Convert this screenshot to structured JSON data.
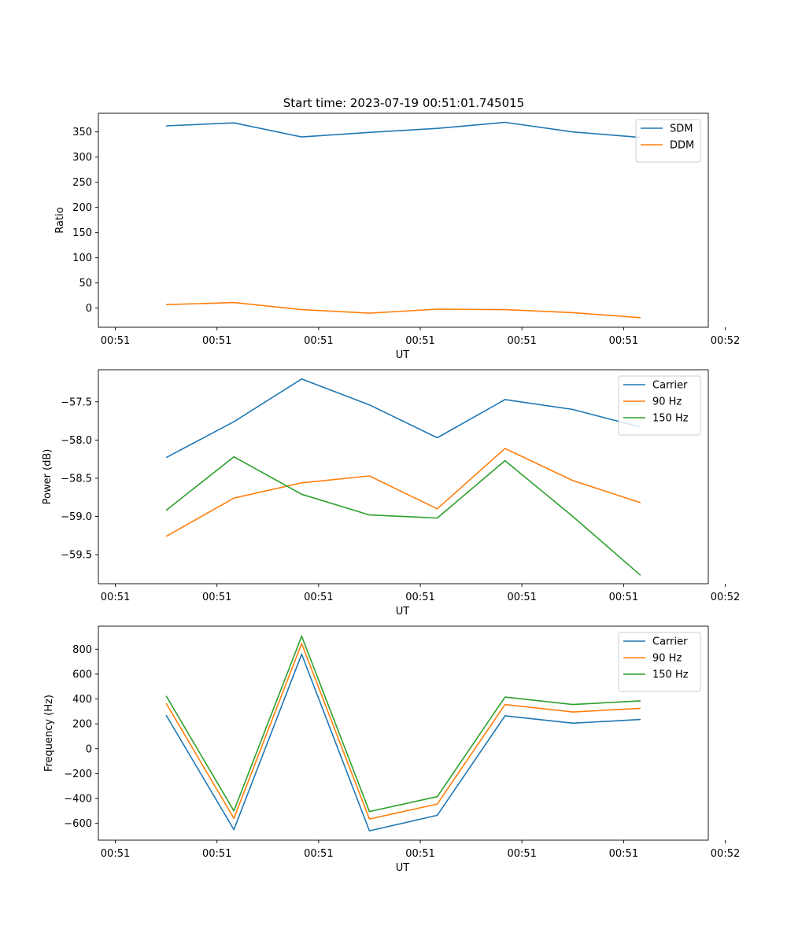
{
  "figure_title": "Start time: 2023-07-19 00:51:01.745015",
  "colors": {
    "blue": "#1f77b4",
    "orange": "#ff7f0e",
    "green": "#2ca02c"
  },
  "chart_data": [
    {
      "type": "line",
      "xlabel": "UT",
      "ylabel": "Ratio",
      "xlim": [
        -0.5,
        8.5
      ],
      "ylim": [
        -38,
        387
      ],
      "xticks": [
        -0.25,
        1.25,
        2.75,
        4.25,
        5.75,
        7.25,
        8.75
      ],
      "xtick_labels": [
        "00:51",
        "00:51",
        "00:51",
        "00:51",
        "00:51",
        "00:51",
        "00:52"
      ],
      "yticks": [
        0,
        50,
        100,
        150,
        200,
        250,
        300,
        350
      ],
      "ytick_labels": [
        "0",
        "50",
        "100",
        "150",
        "200",
        "250",
        "300",
        "350"
      ],
      "x": [
        0.5,
        1.5,
        2.5,
        3.5,
        4.5,
        5.5,
        6.5,
        7.5
      ],
      "legend_position": "top-right",
      "series": [
        {
          "name": "SDM",
          "color": "#1f77b4",
          "values": [
            362,
            368,
            340,
            349,
            357,
            369,
            350,
            339
          ]
        },
        {
          "name": "DDM",
          "color": "#ff7f0e",
          "values": [
            7,
            11,
            -3,
            -10,
            -2,
            -3,
            -9,
            -19
          ]
        }
      ]
    },
    {
      "type": "line",
      "xlabel": "UT",
      "ylabel": "Power (dB)",
      "xlim": [
        -0.5,
        8.5
      ],
      "ylim": [
        -59.88,
        -57.08
      ],
      "xticks": [
        -0.25,
        1.25,
        2.75,
        4.25,
        5.75,
        7.25,
        8.75
      ],
      "xtick_labels": [
        "00:51",
        "00:51",
        "00:51",
        "00:51",
        "00:51",
        "00:51",
        "00:52"
      ],
      "yticks": [
        -59.5,
        -59.0,
        -58.5,
        -58.0,
        -57.5
      ],
      "ytick_labels": [
        "−59.5",
        "−59.0",
        "−58.5",
        "−58.0",
        "−57.5"
      ],
      "x": [
        0.5,
        1.5,
        2.5,
        3.5,
        4.5,
        5.5,
        6.5,
        7.5
      ],
      "legend_position": "top-right",
      "series": [
        {
          "name": "Carrier",
          "color": "#1f77b4",
          "values": [
            -58.23,
            -57.76,
            -57.2,
            -57.54,
            -57.97,
            -57.47,
            -57.6,
            -57.83
          ]
        },
        {
          "name": "90 Hz",
          "color": "#ff7f0e",
          "values": [
            -59.26,
            -58.76,
            -58.56,
            -58.47,
            -58.9,
            -58.11,
            -58.53,
            -58.82
          ]
        },
        {
          "name": "150 Hz",
          "color": "#2ca02c",
          "values": [
            -58.92,
            -58.22,
            -58.71,
            -58.98,
            -59.02,
            -58.27,
            -59.0,
            -59.77
          ]
        }
      ]
    },
    {
      "type": "line",
      "xlabel": "UT",
      "ylabel": "Frequency (Hz)",
      "xlim": [
        -0.5,
        8.5
      ],
      "ylim": [
        -735,
        985
      ],
      "xticks": [
        -0.25,
        1.25,
        2.75,
        4.25,
        5.75,
        7.25,
        8.75
      ],
      "xtick_labels": [
        "00:51",
        "00:51",
        "00:51",
        "00:51",
        "00:51",
        "00:51",
        "00:52"
      ],
      "yticks": [
        -600,
        -400,
        -200,
        0,
        200,
        400,
        600,
        800
      ],
      "ytick_labels": [
        "−600",
        "−400",
        "−200",
        "0",
        "200",
        "400",
        "600",
        "800"
      ],
      "x": [
        0.5,
        1.5,
        2.5,
        3.5,
        4.5,
        5.5,
        6.5,
        7.5
      ],
      "legend_position": "top-right",
      "series": [
        {
          "name": "Carrier",
          "color": "#1f77b4",
          "values": [
            270,
            -650,
            760,
            -660,
            -535,
            265,
            205,
            235
          ]
        },
        {
          "name": "90 Hz",
          "color": "#ff7f0e",
          "values": [
            365,
            -560,
            845,
            -565,
            -445,
            355,
            295,
            325
          ]
        },
        {
          "name": "150 Hz",
          "color": "#2ca02c",
          "values": [
            425,
            -500,
            905,
            -505,
            -385,
            415,
            355,
            385
          ]
        }
      ]
    }
  ]
}
